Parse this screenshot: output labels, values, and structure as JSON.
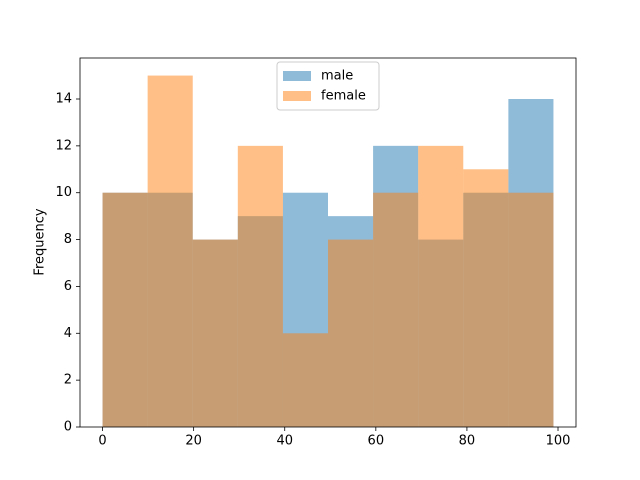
{
  "chart_data": {
    "type": "histogram",
    "ylabel": "Frequency",
    "bins": [
      0,
      9.9,
      19.8,
      29.7,
      39.6,
      49.5,
      59.4,
      69.3,
      79.2,
      89.1,
      99
    ],
    "series": [
      {
        "name": "male",
        "color": "#1f77b4",
        "values": [
          10,
          10,
          8,
          9,
          10,
          9,
          12,
          8,
          10,
          14
        ]
      },
      {
        "name": "female",
        "color": "#ff7f0e",
        "values": [
          10,
          15,
          8,
          12,
          4,
          8,
          10,
          12,
          11,
          10
        ]
      }
    ],
    "alpha": 0.5,
    "xlim": [
      -4.95,
      103.95
    ],
    "xticks": [
      0,
      20,
      40,
      60,
      80,
      100
    ],
    "ylim": [
      0,
      15.75
    ],
    "yticks": [
      0,
      2,
      4,
      6,
      8,
      10,
      12,
      14
    ],
    "legend": "upper center"
  }
}
